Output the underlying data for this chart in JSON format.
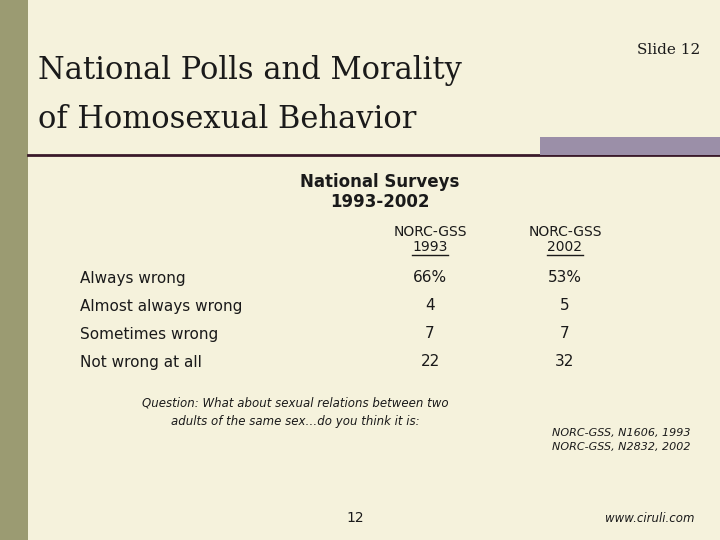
{
  "bg_color": "#f5f2dc",
  "left_bar_color": "#9b9b72",
  "title_text_line1": "National Polls and Morality",
  "title_text_line2": "of Homosexual Behavior",
  "slide_num": "Slide 12",
  "subtitle_line1": "National Surveys",
  "subtitle_line2": "1993-2002",
  "col1_header_line1": "NORC-GSS",
  "col1_header_line2": "1993",
  "col2_header_line1": "NORC-GSS",
  "col2_header_line2": "2002",
  "rows": [
    {
      "label": "Always wrong",
      "val1": "66%",
      "val2": "53%"
    },
    {
      "label": "Almost always wrong",
      "val1": "4",
      "val2": "5"
    },
    {
      "label": "Sometimes wrong",
      "val1": "7",
      "val2": "7"
    },
    {
      "label": "Not wrong at all",
      "val1": "22",
      "val2": "32"
    }
  ],
  "question_text": "Question: What about sexual relations between two\nadults of the same sex…do you think it is:",
  "source_text": "NORC-GSS, N1606, 1993\nNORC-GSS, N2832, 2002",
  "page_num": "12",
  "website": "www.ciruli.com",
  "separator_line_color": "#3a1a2a",
  "purple_rect_color": "#9b8fa8",
  "title_color": "#1a1a1a",
  "text_color": "#1a1a1a"
}
